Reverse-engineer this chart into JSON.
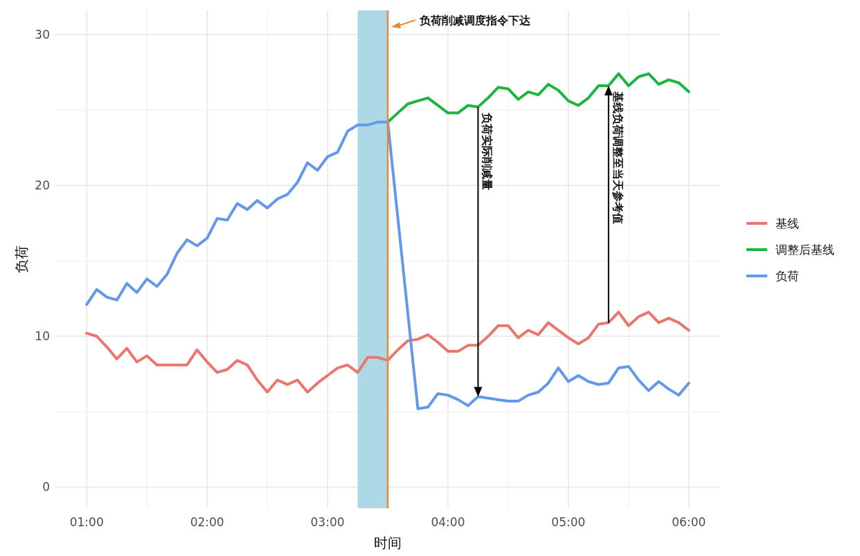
{
  "chart_data": {
    "type": "line",
    "xlabel": "时间",
    "ylabel": "负荷",
    "xlim": [
      0.74,
      6.26
    ],
    "ylim": [
      -1.4,
      31.6
    ],
    "xticks": [
      {
        "value": 1,
        "label": "01:00"
      },
      {
        "value": 2,
        "label": "02:00"
      },
      {
        "value": 3,
        "label": "03:00"
      },
      {
        "value": 4,
        "label": "04:00"
      },
      {
        "value": 5,
        "label": "05:00"
      },
      {
        "value": 6,
        "label": "06:00"
      }
    ],
    "yticks": [
      0,
      10,
      20,
      30
    ],
    "grid": true,
    "legend": "right",
    "series": [
      {
        "name": "基线",
        "color": "#e8776f",
        "x": [
          1,
          1.0833,
          1.1667,
          1.25,
          1.3333,
          1.4167,
          1.5,
          1.5833,
          1.6667,
          1.75,
          1.8333,
          1.9167,
          2,
          2.0833,
          2.1667,
          2.25,
          2.3333,
          2.4167,
          2.5,
          2.5833,
          2.6667,
          2.75,
          2.8333,
          2.9167,
          3,
          3.0833,
          3.1667,
          3.25,
          3.3333,
          3.4167,
          3.5,
          3.5833,
          3.6667,
          3.75,
          3.8333,
          3.9167,
          4,
          4.0833,
          4.1667,
          4.25,
          4.3333,
          4.4167,
          4.5,
          4.5833,
          4.6667,
          4.75,
          4.8333,
          4.9167,
          5,
          5.0833,
          5.1667,
          5.25,
          5.3333,
          5.4167,
          5.5,
          5.5833,
          5.6667,
          5.75,
          5.8333,
          5.9167,
          6
        ],
        "values": [
          10.2,
          10.0,
          9.3,
          8.5,
          9.2,
          8.3,
          8.7,
          8.1,
          8.1,
          8.1,
          8.1,
          9.1,
          8.3,
          7.6,
          7.8,
          8.4,
          8.1,
          7.1,
          6.3,
          7.1,
          6.8,
          7.1,
          6.3,
          6.9,
          7.4,
          7.9,
          8.1,
          7.6,
          8.6,
          8.6,
          8.4,
          9.1,
          9.7,
          9.8,
          10.1,
          9.6,
          9.0,
          9.0,
          9.4,
          9.4,
          10.0,
          10.7,
          10.7,
          9.9,
          10.4,
          10.1,
          10.9,
          10.4,
          9.9,
          9.5,
          9.9,
          10.8,
          10.9,
          11.6,
          10.7,
          11.3,
          11.6,
          10.9,
          11.2,
          10.9,
          10.4
        ]
      },
      {
        "name": "调整后基线",
        "color": "#1eb440",
        "x": [
          3.5,
          3.5833,
          3.6667,
          3.75,
          3.8333,
          3.9167,
          4,
          4.0833,
          4.1667,
          4.25,
          4.3333,
          4.4167,
          4.5,
          4.5833,
          4.6667,
          4.75,
          4.8333,
          4.9167,
          5,
          5.0833,
          5.1667,
          5.25,
          5.3333,
          5.4167,
          5.5,
          5.5833,
          5.6667,
          5.75,
          5.8333,
          5.9167,
          6
        ],
        "values": [
          24.2,
          24.8,
          25.4,
          25.6,
          25.8,
          25.3,
          24.8,
          24.8,
          25.3,
          25.2,
          25.8,
          26.5,
          26.4,
          25.7,
          26.2,
          26.0,
          26.7,
          26.3,
          25.6,
          25.3,
          25.8,
          26.6,
          26.6,
          27.4,
          26.6,
          27.2,
          27.4,
          26.7,
          27.0,
          26.8,
          26.2
        ]
      },
      {
        "name": "负荷",
        "color": "#6399e8",
        "x": [
          1,
          1.0833,
          1.1667,
          1.25,
          1.3333,
          1.4167,
          1.5,
          1.5833,
          1.6667,
          1.75,
          1.8333,
          1.9167,
          2,
          2.0833,
          2.1667,
          2.25,
          2.3333,
          2.4167,
          2.5,
          2.5833,
          2.6667,
          2.75,
          2.8333,
          2.9167,
          3,
          3.0833,
          3.1667,
          3.25,
          3.3333,
          3.4167,
          3.5,
          3.75,
          3.8333,
          3.9167,
          4,
          4.0833,
          4.1667,
          4.25,
          4.3333,
          4.4167,
          4.5,
          4.5833,
          4.6667,
          4.75,
          4.8333,
          4.9167,
          5,
          5.0833,
          5.1667,
          5.25,
          5.3333,
          5.4167,
          5.5,
          5.5833,
          5.6667,
          5.75,
          5.8333,
          5.9167,
          6
        ],
        "values": [
          12.1,
          13.1,
          12.6,
          12.4,
          13.5,
          12.9,
          13.8,
          13.3,
          14.1,
          15.5,
          16.4,
          16.0,
          16.5,
          17.8,
          17.7,
          18.8,
          18.4,
          19.0,
          18.5,
          19.1,
          19.4,
          20.2,
          21.5,
          21.0,
          21.9,
          22.2,
          23.6,
          24.0,
          24.0,
          24.2,
          24.2,
          5.2,
          5.3,
          6.2,
          6.1,
          5.8,
          5.4,
          6.0,
          5.9,
          5.8,
          5.7,
          5.7,
          6.1,
          6.3,
          6.9,
          7.9,
          7.0,
          7.4,
          7.0,
          6.8,
          6.9,
          7.9,
          8.0,
          7.1,
          6.4,
          7.0,
          6.5,
          6.1,
          6.9
        ]
      }
    ],
    "bands": [
      {
        "axis": "x",
        "from": 3.25,
        "to": 3.5,
        "color": "#add8e6"
      }
    ],
    "ref_lines": [
      {
        "axis": "x",
        "value": 3.5,
        "label": "负荷削减调度指令下达",
        "color": "#e8893a"
      }
    ],
    "annotations": [
      {
        "text": "负荷实际削减量",
        "x": 4.25,
        "y": 25.2
      },
      {
        "text": "基线负荷调整至当天参考值",
        "x": 5.3333,
        "y": 26.6
      }
    ]
  }
}
